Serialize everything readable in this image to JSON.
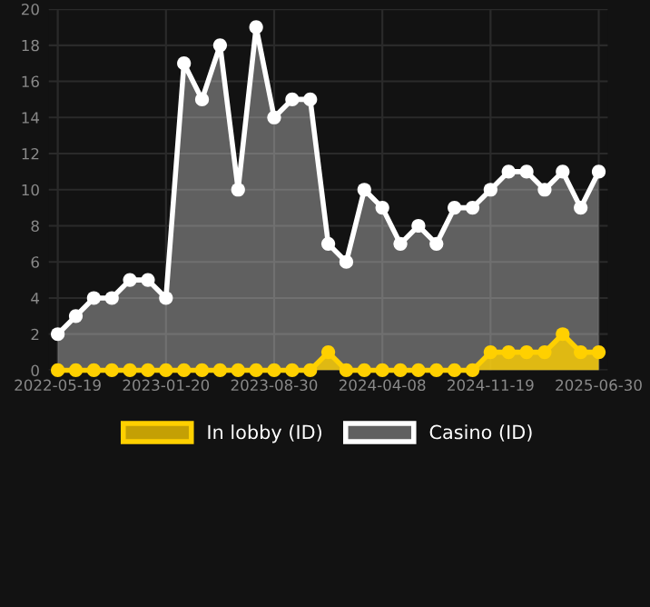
{
  "chart_data": {
    "type": "area",
    "categories": [
      "2022-05-19",
      null,
      null,
      null,
      null,
      null,
      "2023-01-20",
      null,
      null,
      null,
      null,
      null,
      "2023-08-30",
      null,
      null,
      null,
      null,
      null,
      "2024-04-08",
      null,
      null,
      null,
      null,
      null,
      "2024-11-19",
      null,
      null,
      null,
      null,
      null,
      "2025-06-30"
    ],
    "series": [
      {
        "name": "In lobby (ID)",
        "color": "#ffd000",
        "values": [
          0,
          0,
          0,
          0,
          0,
          0,
          0,
          0,
          0,
          0,
          0,
          0,
          0,
          0,
          0,
          1,
          0,
          0,
          0,
          0,
          0,
          0,
          0,
          0,
          1,
          1,
          1,
          1,
          2,
          1,
          1
        ]
      },
      {
        "name": "Casino (ID)",
        "color": "#ffffff",
        "values": [
          2,
          3,
          4,
          4,
          5,
          5,
          4,
          17,
          15,
          18,
          10,
          19,
          14,
          15,
          15,
          7,
          6,
          10,
          9,
          7,
          8,
          7,
          9,
          9,
          10,
          11,
          11,
          10,
          11,
          9,
          11
        ]
      }
    ],
    "ylim": [
      0,
      20
    ],
    "yticks": [
      0,
      2,
      4,
      6,
      8,
      10,
      12,
      14,
      16,
      18,
      20
    ],
    "grid": true,
    "legend": "bottom",
    "marker": "circle",
    "line_style": "solid"
  }
}
